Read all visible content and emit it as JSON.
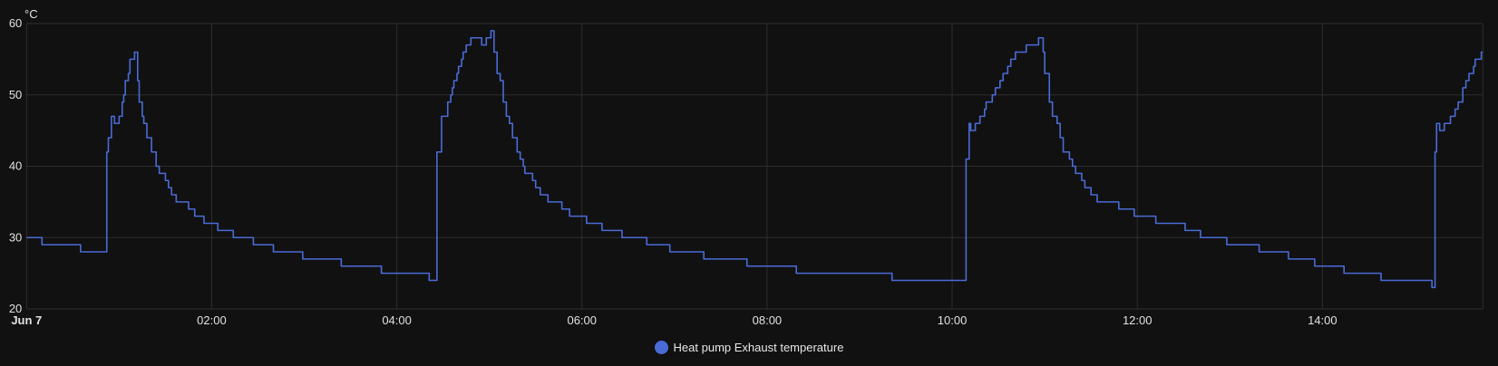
{
  "chart_data": {
    "type": "line",
    "step": true,
    "yunit": "°C",
    "ylim": [
      20,
      60
    ],
    "y_ticks": [
      20,
      30,
      40,
      50,
      60
    ],
    "x_range": [
      "00:00",
      "15:44"
    ],
    "x_ticks": [
      {
        "time": "00:00",
        "label": "Jun 7",
        "bold": true
      },
      {
        "time": "02:00",
        "label": "02:00"
      },
      {
        "time": "04:00",
        "label": "04:00"
      },
      {
        "time": "06:00",
        "label": "06:00"
      },
      {
        "time": "08:00",
        "label": "08:00"
      },
      {
        "time": "10:00",
        "label": "10:00"
      },
      {
        "time": "12:00",
        "label": "12:00"
      },
      {
        "time": "14:00",
        "label": "14:00"
      }
    ],
    "grid": true,
    "legend_position": "bottom",
    "series": [
      {
        "name": "Heat pump Exhaust temperature",
        "color": "#4a6bd6",
        "points": [
          [
            "00:00",
            30
          ],
          [
            "00:10",
            29
          ],
          [
            "00:35",
            28
          ],
          [
            "00:52",
            42
          ],
          [
            "00:53",
            44
          ],
          [
            "00:55",
            47
          ],
          [
            "00:57",
            46
          ],
          [
            "01:00",
            47
          ],
          [
            "01:02",
            49
          ],
          [
            "01:03",
            50
          ],
          [
            "01:04",
            52
          ],
          [
            "01:06",
            53
          ],
          [
            "01:07",
            55
          ],
          [
            "01:10",
            56
          ],
          [
            "01:12",
            52
          ],
          [
            "01:13",
            49
          ],
          [
            "01:15",
            47
          ],
          [
            "01:16",
            46
          ],
          [
            "01:18",
            44
          ],
          [
            "01:21",
            42
          ],
          [
            "01:24",
            40
          ],
          [
            "01:26",
            39
          ],
          [
            "01:30",
            38
          ],
          [
            "01:32",
            37
          ],
          [
            "01:34",
            36
          ],
          [
            "01:37",
            35
          ],
          [
            "01:45",
            34
          ],
          [
            "01:49",
            33
          ],
          [
            "01:55",
            32
          ],
          [
            "02:04",
            31
          ],
          [
            "02:14",
            30
          ],
          [
            "02:27",
            29
          ],
          [
            "02:40",
            28
          ],
          [
            "02:59",
            27
          ],
          [
            "03:24",
            26
          ],
          [
            "03:50",
            25
          ],
          [
            "04:21",
            24
          ],
          [
            "04:26",
            42
          ],
          [
            "04:29",
            47
          ],
          [
            "04:33",
            49
          ],
          [
            "04:35",
            50
          ],
          [
            "04:36",
            51
          ],
          [
            "04:37",
            52
          ],
          [
            "04:39",
            53
          ],
          [
            "04:40",
            54
          ],
          [
            "04:42",
            55
          ],
          [
            "04:43",
            56
          ],
          [
            "04:45",
            57
          ],
          [
            "04:48",
            58
          ],
          [
            "04:55",
            57
          ],
          [
            "04:58",
            58
          ],
          [
            "05:01",
            59
          ],
          [
            "05:03",
            56
          ],
          [
            "05:05",
            53
          ],
          [
            "05:07",
            52
          ],
          [
            "05:09",
            49
          ],
          [
            "05:11",
            47
          ],
          [
            "05:13",
            46
          ],
          [
            "05:15",
            44
          ],
          [
            "05:18",
            42
          ],
          [
            "05:20",
            41
          ],
          [
            "05:22",
            40
          ],
          [
            "05:23",
            39
          ],
          [
            "05:28",
            38
          ],
          [
            "05:30",
            37
          ],
          [
            "05:33",
            36
          ],
          [
            "05:38",
            35
          ],
          [
            "05:47",
            34
          ],
          [
            "05:52",
            33
          ],
          [
            "06:03",
            32
          ],
          [
            "06:13",
            31
          ],
          [
            "06:26",
            30
          ],
          [
            "06:42",
            29
          ],
          [
            "06:57",
            28
          ],
          [
            "07:19",
            27
          ],
          [
            "07:47",
            26
          ],
          [
            "08:19",
            25
          ],
          [
            "09:21",
            24
          ],
          [
            "10:09",
            41
          ],
          [
            "10:11",
            46
          ],
          [
            "10:12",
            45
          ],
          [
            "10:15",
            46
          ],
          [
            "10:18",
            47
          ],
          [
            "10:21",
            48
          ],
          [
            "10:22",
            49
          ],
          [
            "10:26",
            50
          ],
          [
            "10:28",
            51
          ],
          [
            "10:31",
            52
          ],
          [
            "10:33",
            53
          ],
          [
            "10:36",
            54
          ],
          [
            "10:38",
            55
          ],
          [
            "10:41",
            56
          ],
          [
            "10:48",
            57
          ],
          [
            "10:56",
            58
          ],
          [
            "10:59",
            56
          ],
          [
            "11:00",
            53
          ],
          [
            "11:03",
            49
          ],
          [
            "11:05",
            47
          ],
          [
            "11:08",
            46
          ],
          [
            "11:10",
            44
          ],
          [
            "11:12",
            42
          ],
          [
            "11:16",
            41
          ],
          [
            "11:18",
            40
          ],
          [
            "11:20",
            39
          ],
          [
            "11:24",
            38
          ],
          [
            "11:26",
            37
          ],
          [
            "11:30",
            36
          ],
          [
            "11:34",
            35
          ],
          [
            "11:48",
            34
          ],
          [
            "11:58",
            33
          ],
          [
            "12:12",
            32
          ],
          [
            "12:31",
            31
          ],
          [
            "12:41",
            30
          ],
          [
            "12:58",
            29
          ],
          [
            "13:19",
            28
          ],
          [
            "13:38",
            27
          ],
          [
            "13:55",
            26
          ],
          [
            "14:14",
            25
          ],
          [
            "14:38",
            24
          ],
          [
            "15:11",
            23
          ],
          [
            "15:13",
            42
          ],
          [
            "15:14",
            46
          ],
          [
            "15:16",
            45
          ],
          [
            "15:19",
            46
          ],
          [
            "15:23",
            47
          ],
          [
            "15:26",
            48
          ],
          [
            "15:28",
            49
          ],
          [
            "15:31",
            51
          ],
          [
            "15:33",
            52
          ],
          [
            "15:35",
            53
          ],
          [
            "15:38",
            54
          ],
          [
            "15:39",
            55
          ],
          [
            "15:43",
            56
          ],
          [
            "15:44",
            56
          ]
        ]
      }
    ]
  }
}
